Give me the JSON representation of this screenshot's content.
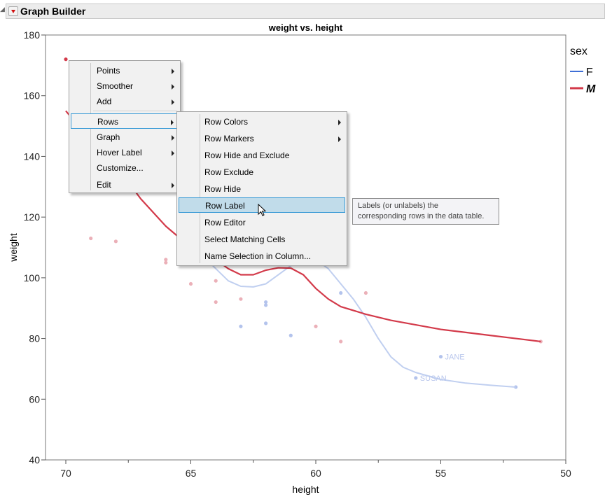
{
  "header": {
    "title": "Graph Builder"
  },
  "chart_data": {
    "type": "scatter",
    "title": "weight vs. height",
    "xlabel": "height",
    "ylabel": "weight",
    "xlim": [
      70,
      50
    ],
    "ylim": [
      40,
      180
    ],
    "x_reversed": true,
    "xticks": [
      "70",
      "65",
      "60",
      "55",
      "50"
    ],
    "yticks": [
      "40",
      "60",
      "80",
      "100",
      "120",
      "140",
      "160",
      "180"
    ],
    "legend": {
      "title": "sex",
      "placement": "right",
      "entries": [
        {
          "name": "F",
          "color": "#3f6fd6"
        },
        {
          "name": "M",
          "color": "#d33a4a"
        }
      ]
    },
    "series": [
      {
        "name": "F",
        "point_color": "#b3c3ec",
        "line_color": "#c0cff0",
        "points": [
          [
            63,
            84
          ],
          [
            62,
            85
          ],
          [
            62,
            92
          ],
          [
            62,
            91
          ],
          [
            61,
            81
          ],
          [
            59,
            95
          ],
          [
            56,
            67
          ],
          [
            55,
            74
          ],
          [
            52,
            64
          ]
        ],
        "labels": [
          {
            "x": 56,
            "y": 67,
            "text": "SUSAN"
          },
          {
            "x": 55,
            "y": 74,
            "text": "JANE"
          }
        ],
        "smoother": [
          [
            64.6,
            108
          ],
          [
            64,
            103
          ],
          [
            63.5,
            99
          ],
          [
            63,
            97.2
          ],
          [
            62.5,
            97
          ],
          [
            62,
            98
          ],
          [
            61.5,
            101
          ],
          [
            61,
            104
          ],
          [
            60.5,
            107
          ],
          [
            60,
            106
          ],
          [
            59.5,
            103
          ],
          [
            59,
            98
          ],
          [
            58.5,
            93
          ],
          [
            58,
            87
          ],
          [
            57.5,
            80
          ],
          [
            57,
            74
          ],
          [
            56.5,
            70.5
          ],
          [
            56,
            68.8
          ],
          [
            55,
            66.5
          ],
          [
            54,
            65.3
          ],
          [
            53,
            64.6
          ],
          [
            52,
            64
          ]
        ]
      },
      {
        "name": "M",
        "point_color": "#ebb0b8",
        "line_color": "#d33a4a",
        "points": [
          [
            70,
            172
          ],
          [
            69,
            113
          ],
          [
            68,
            112
          ],
          [
            66,
            106
          ],
          [
            66,
            105
          ],
          [
            65,
            98
          ],
          [
            64,
            99
          ],
          [
            64,
            92
          ],
          [
            63,
            93
          ],
          [
            60,
            84
          ],
          [
            59,
            79
          ],
          [
            58,
            95
          ],
          [
            51,
            79
          ]
        ],
        "smoother": [
          [
            70,
            155
          ],
          [
            69.5,
            150
          ],
          [
            69,
            146
          ],
          [
            68,
            137
          ],
          [
            67,
            126
          ],
          [
            66,
            117
          ],
          [
            65,
            110
          ],
          [
            64,
            106
          ],
          [
            63.5,
            103
          ],
          [
            63,
            101
          ],
          [
            62.5,
            101
          ],
          [
            62,
            102.5
          ],
          [
            61.5,
            103.3
          ],
          [
            61,
            103.2
          ],
          [
            60.5,
            101
          ],
          [
            60,
            96.5
          ],
          [
            59.5,
            93
          ],
          [
            59,
            90.5
          ],
          [
            58,
            88
          ],
          [
            57,
            86
          ],
          [
            56,
            84.5
          ],
          [
            55,
            83
          ],
          [
            54,
            82
          ],
          [
            53,
            81
          ],
          [
            52,
            80
          ],
          [
            51,
            79
          ]
        ]
      }
    ]
  },
  "context_menu": {
    "items": [
      {
        "label": "Points",
        "submenu": true
      },
      {
        "label": "Smoother",
        "submenu": true
      },
      {
        "label": "Add",
        "submenu": true
      },
      {
        "label": "Rows",
        "submenu": true
      },
      {
        "label": "Graph",
        "submenu": true
      },
      {
        "label": "Hover Label",
        "submenu": true
      },
      {
        "label": "Customize...",
        "submenu": false
      },
      {
        "label": "Edit",
        "submenu": true
      }
    ]
  },
  "rows_submenu": {
    "items": [
      {
        "label": "Row Colors",
        "submenu": true
      },
      {
        "label": "Row Markers",
        "submenu": true
      },
      {
        "label": "Row Hide and Exclude"
      },
      {
        "label": "Row Exclude"
      },
      {
        "label": "Row Hide"
      },
      {
        "label": "Row Label",
        "highlighted": true
      },
      {
        "label": "Row Editor"
      },
      {
        "label": "Select Matching Cells"
      },
      {
        "label": "Name Selection in Column..."
      }
    ]
  },
  "tooltip": {
    "line1": "Labels (or unlabels) the",
    "line2": "corresponding rows in the data table."
  }
}
